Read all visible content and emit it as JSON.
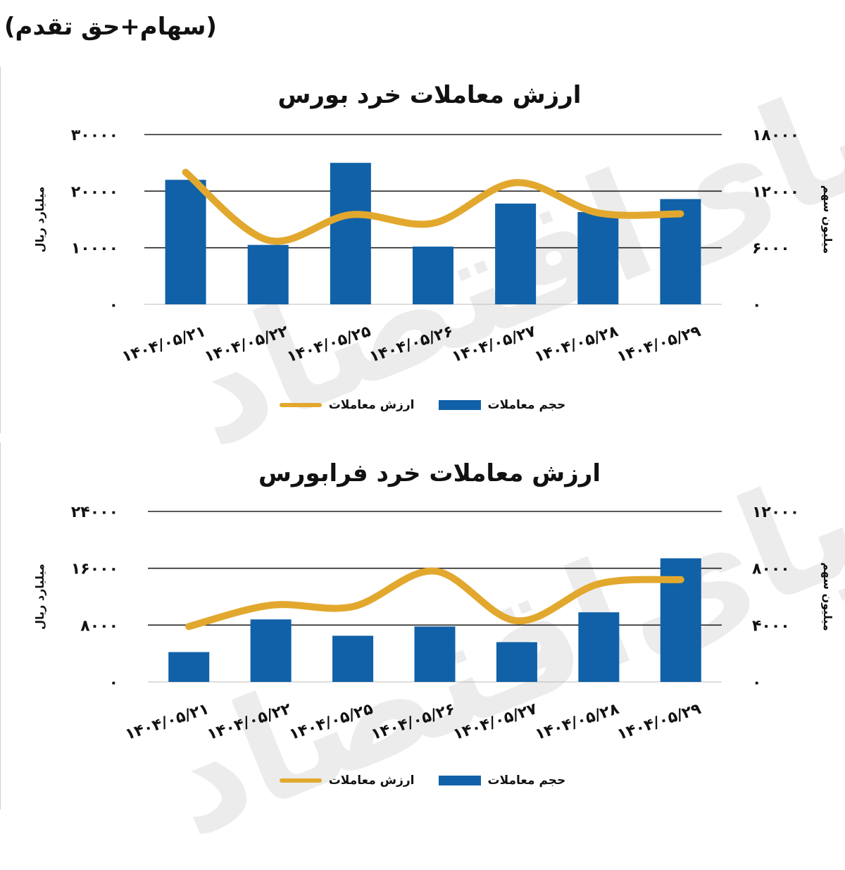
{
  "header_note": "(سهام+حق تقدم)",
  "legend": {
    "bar_label": "حجم معاملات",
    "line_label": "ارزش معاملات"
  },
  "colors": {
    "bar": "#1061a8",
    "line": "#e2a82e",
    "grid": "#222222"
  },
  "chart_data": [
    {
      "type": "bar",
      "title": "ارزش معاملات خرد بورس",
      "categories": [
        "۱۴۰۴/۰۵/۲۱",
        "۱۴۰۴/۰۵/۲۲",
        "۱۴۰۴/۰۵/۲۵",
        "۱۴۰۴/۰۵/۲۶",
        "۱۴۰۴/۰۵/۲۷",
        "۱۴۰۴/۰۵/۲۸",
        "۱۴۰۴/۰۵/۲۹"
      ],
      "ylabel_left": "میلیارد ریال",
      "ylabel_right": "میلیون سهم",
      "ylim_left": [
        0,
        30000
      ],
      "ylim_right": [
        0,
        18000
      ],
      "yticks_left": [
        "۰",
        "۱۰۰۰۰",
        "۲۰۰۰۰",
        "۳۰۰۰۰"
      ],
      "yticks_right": [
        "۰",
        "۶۰۰۰",
        "۱۲۰۰۰",
        "۱۸۰۰۰"
      ],
      "grid": true,
      "legend_position": "bottom",
      "series": [
        {
          "name": "حجم معاملات",
          "type": "bar",
          "axis": "left",
          "values": [
            22000,
            10500,
            25000,
            10200,
            17800,
            16300,
            18600
          ]
        },
        {
          "name": "ارزش معاملات",
          "type": "line",
          "axis": "right",
          "values": [
            14000,
            6800,
            9500,
            8600,
            12900,
            9700,
            9600
          ]
        }
      ]
    },
    {
      "type": "bar",
      "title": "ارزش معاملات خرد فرابورس",
      "categories": [
        "۱۴۰۴/۰۵/۲۱",
        "۱۴۰۴/۰۵/۲۲",
        "۱۴۰۴/۰۵/۲۵",
        "۱۴۰۴/۰۵/۲۶",
        "۱۴۰۴/۰۵/۲۷",
        "۱۴۰۴/۰۵/۲۸",
        "۱۴۰۴/۰۵/۲۹"
      ],
      "ylabel_left": "میلیارد ریال",
      "ylabel_right": "میلیون سهم",
      "ylim_left": [
        0,
        24000
      ],
      "ylim_right": [
        0,
        12000
      ],
      "yticks_left": [
        "۰",
        "۸۰۰۰",
        "۱۶۰۰۰",
        "۲۴۰۰۰"
      ],
      "yticks_right": [
        "۰",
        "۴۰۰۰",
        "۸۰۰۰",
        "۱۲۰۰۰"
      ],
      "grid": true,
      "legend_position": "bottom",
      "series": [
        {
          "name": "حجم معاملات",
          "type": "bar",
          "axis": "left",
          "values": [
            4200,
            8800,
            6500,
            7800,
            5600,
            9800,
            17400
          ]
        },
        {
          "name": "ارزش معاملات",
          "type": "line",
          "axis": "right",
          "values": [
            3900,
            5400,
            5300,
            7800,
            4300,
            6900,
            7200
          ]
        }
      ]
    }
  ]
}
